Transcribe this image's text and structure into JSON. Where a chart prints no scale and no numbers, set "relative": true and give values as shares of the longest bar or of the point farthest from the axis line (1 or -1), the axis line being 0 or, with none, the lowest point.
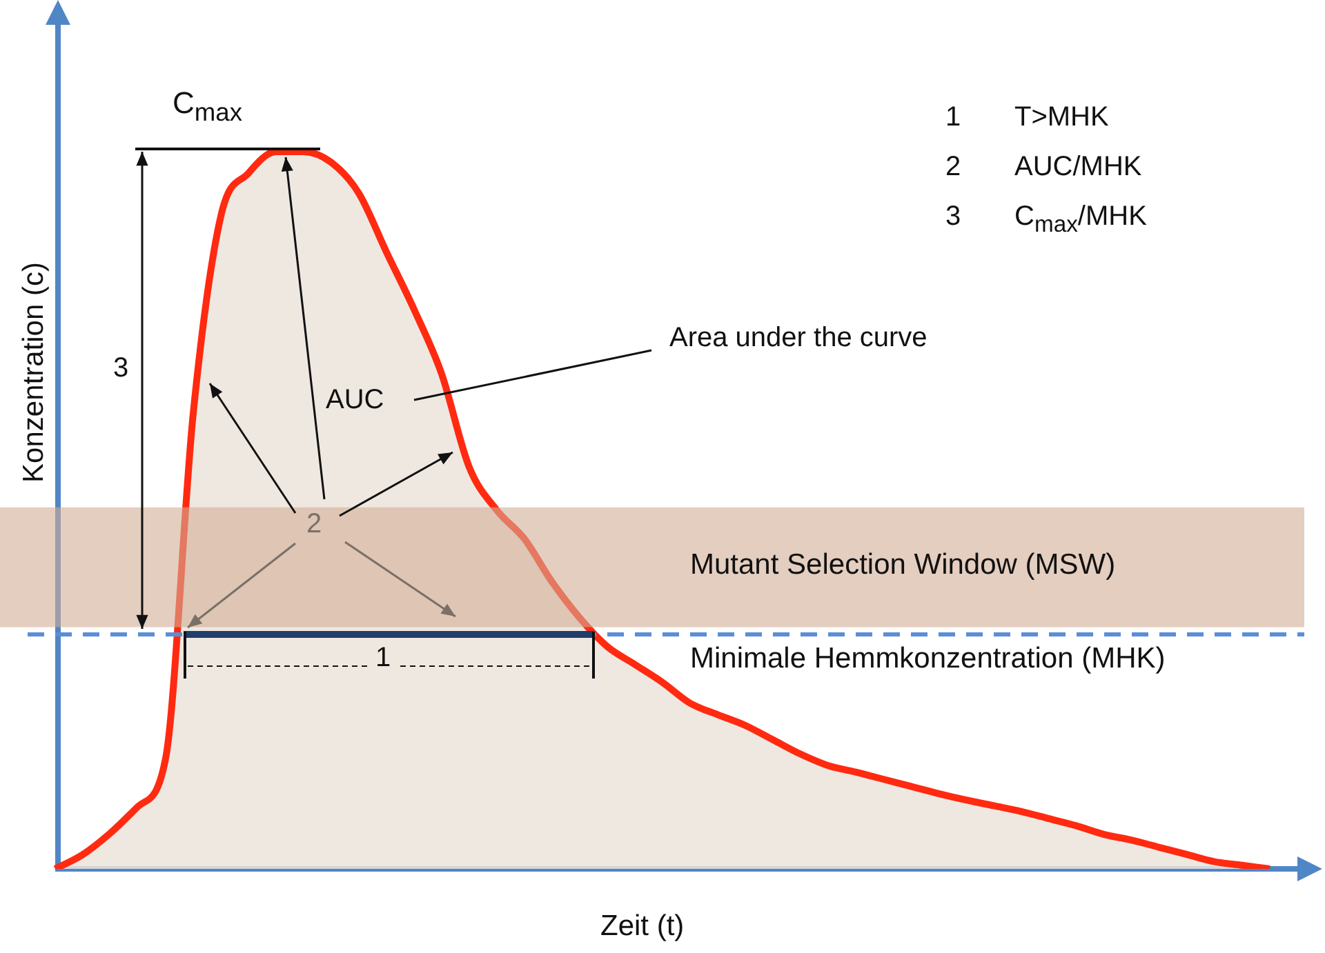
{
  "chart_data": {
    "type": "area",
    "relative": true,
    "xlabel": "Zeit (t)",
    "ylabel": "Konzentration (c)",
    "categories": [
      null,
      null,
      null,
      null,
      null,
      null,
      null,
      null,
      null,
      null,
      null,
      null,
      null,
      null,
      null,
      null,
      null,
      null,
      null,
      null,
      null,
      null,
      null,
      null,
      null,
      null,
      null,
      null,
      null,
      null,
      null,
      null,
      null,
      null,
      null,
      null,
      null,
      null,
      null,
      null,
      null,
      null,
      null,
      null,
      null
    ],
    "series": [
      {
        "color": "#ff2a10",
        "values": [
          0,
          0.02,
          0.05,
          0.087,
          0.154,
          0.635,
          0.91,
          0.97,
          1.0,
          1.0,
          0.985,
          0.942,
          0.86,
          0.78,
          0.69,
          0.56,
          0.5,
          0.46,
          0.4,
          0.35,
          0.31,
          0.285,
          0.26,
          0.231,
          0.215,
          0.2,
          0.18,
          0.16,
          0.144,
          0.135,
          0.125,
          0.115,
          0.105,
          0.096,
          0.088,
          0.08,
          0.07,
          0.06,
          0.048,
          0.04,
          0.03,
          0.02,
          0.01,
          0.005,
          0
        ]
      }
    ],
    "ref_lines": [
      {
        "axis": "y",
        "value": 0.327,
        "label": "Minimale Hemmkonzentration (MHK)",
        "color": "#5b8ed6",
        "line_style": "dashed"
      }
    ],
    "bands": [
      {
        "axis": "y",
        "from": 0.337,
        "to": 0.504,
        "label": "Mutant Selection Window (MSW)",
        "color": "#d2ae96"
      }
    ],
    "annotations": [
      "C$_{max}$",
      "1",
      "T>MHK",
      "2",
      "AUC/MHK",
      "3",
      "C$_{max}$/MHK",
      "Area under the curve",
      "AUC",
      "2",
      "3",
      "1"
    ],
    "legend": false,
    "marker": "none"
  }
}
